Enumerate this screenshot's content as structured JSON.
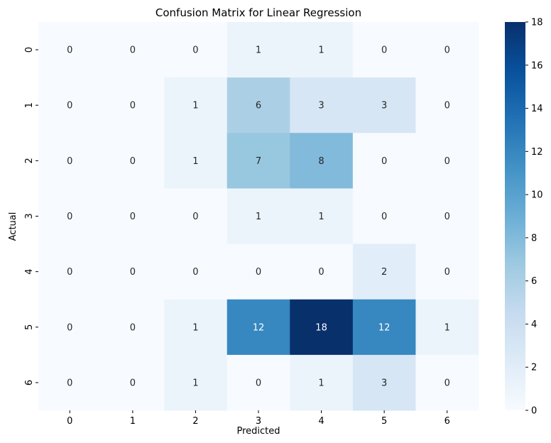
{
  "chart_data": {
    "type": "heatmap",
    "title": "Confusion Matrix for Linear Regression",
    "xlabel": "Predicted",
    "ylabel": "Actual",
    "x_categories": [
      "0",
      "1",
      "2",
      "3",
      "4",
      "5",
      "6"
    ],
    "y_categories": [
      "0",
      "1",
      "2",
      "3",
      "4",
      "5",
      "6"
    ],
    "values": [
      [
        0,
        0,
        0,
        1,
        1,
        0,
        0
      ],
      [
        0,
        0,
        1,
        6,
        3,
        3,
        0
      ],
      [
        0,
        0,
        1,
        7,
        8,
        0,
        0
      ],
      [
        0,
        0,
        0,
        1,
        1,
        0,
        0
      ],
      [
        0,
        0,
        0,
        0,
        0,
        2,
        0
      ],
      [
        0,
        0,
        1,
        12,
        18,
        12,
        1
      ],
      [
        0,
        0,
        1,
        0,
        1,
        3,
        0
      ]
    ],
    "colormap": "Blues",
    "vmin": 0,
    "vmax": 18,
    "colorbar_ticks": [
      0,
      2,
      4,
      6,
      8,
      10,
      12,
      14,
      16,
      18
    ],
    "annotation_dark_color": "#262626",
    "annotation_light_color": "#ffffff"
  }
}
